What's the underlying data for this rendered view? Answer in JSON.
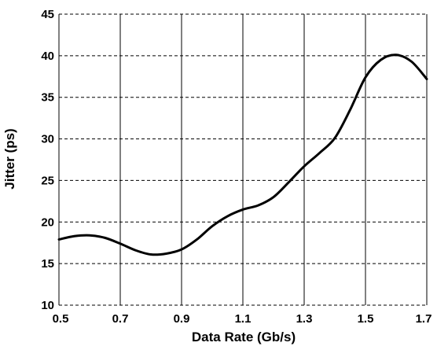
{
  "chart_data": {
    "type": "line",
    "title": "",
    "xlabel": "Data Rate (Gb/s)",
    "ylabel": "Jitter (ps)",
    "xlim": [
      0.5,
      1.7
    ],
    "ylim": [
      10,
      45
    ],
    "x_ticks": [
      "0.5",
      "0.7",
      "0.9",
      "1.1",
      "1.3",
      "1.5",
      "1.7"
    ],
    "y_ticks": [
      "10",
      "15",
      "20",
      "25",
      "30",
      "35",
      "40",
      "45"
    ],
    "grid": {
      "vertical": "solid",
      "horizontal": "dashed"
    },
    "legend": "none",
    "line_color": "#000000",
    "series": [
      {
        "x": [
          0.5,
          0.55,
          0.6,
          0.65,
          0.7,
          0.75,
          0.8,
          0.85,
          0.9,
          0.95,
          1.0,
          1.05,
          1.1,
          1.15,
          1.2,
          1.25,
          1.3,
          1.35,
          1.4,
          1.45,
          1.5,
          1.55,
          1.6,
          1.65,
          1.7
        ],
        "values": [
          17.9,
          18.3,
          18.4,
          18.1,
          17.4,
          16.6,
          16.1,
          16.2,
          16.7,
          17.9,
          19.5,
          20.7,
          21.5,
          22.0,
          23.0,
          24.8,
          26.7,
          28.3,
          30.1,
          33.5,
          37.4,
          39.5,
          40.1,
          39.3,
          37.2
        ]
      }
    ]
  }
}
